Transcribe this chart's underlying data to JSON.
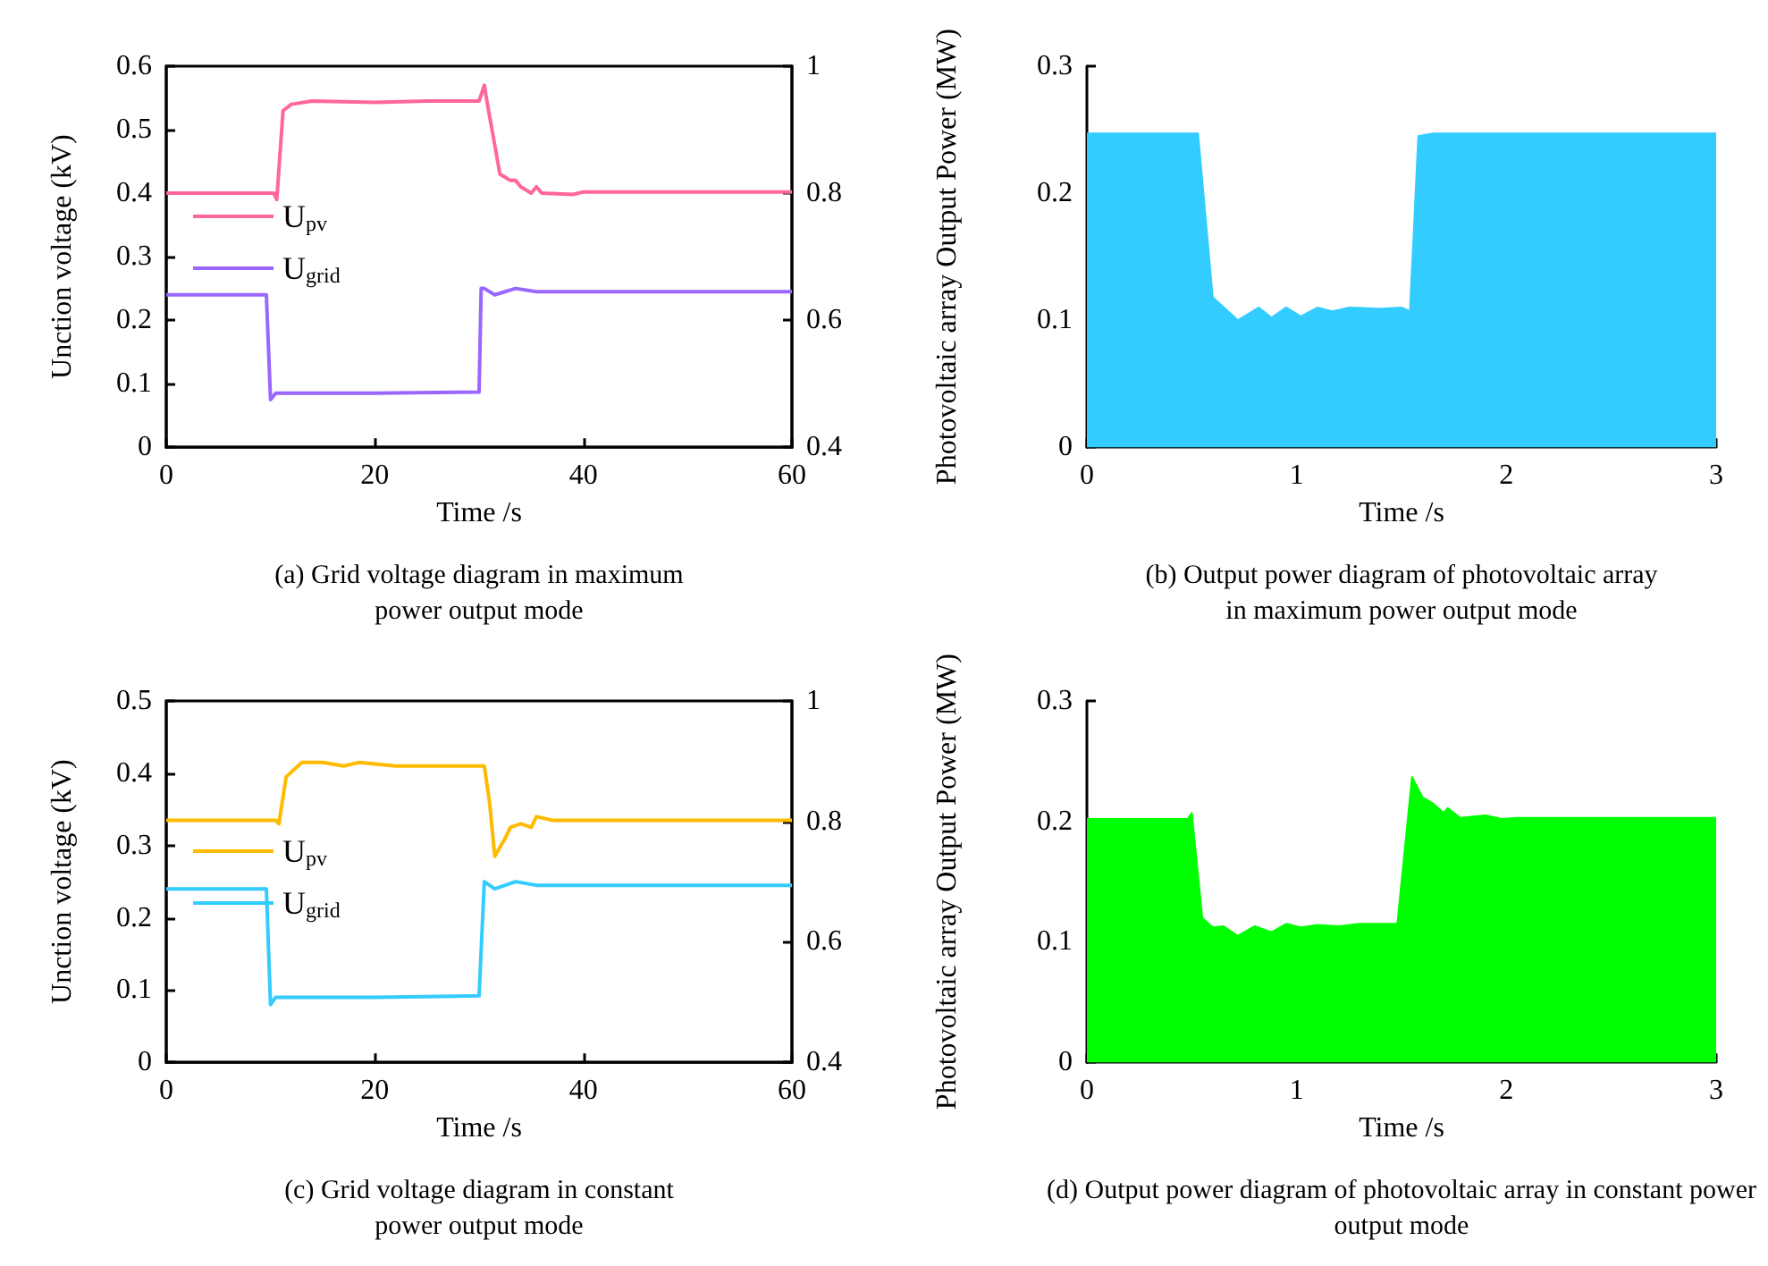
{
  "chart_data": [
    {
      "type": "line",
      "xlabel": "Time /s",
      "ylabel": "Unction voltage (kV)",
      "annotations": [
        "(a) Grid voltage diagram in maximum power output mode"
      ],
      "xlim": [
        0,
        60
      ],
      "xticks": [
        0,
        20,
        40,
        60
      ],
      "ylim": [
        0,
        0.6
      ],
      "yticks": [
        0,
        0.1,
        0.2,
        0.3,
        0.4,
        0.5,
        0.6
      ],
      "y2lim": [
        0.4,
        1.0
      ],
      "y2ticks": [
        0.4,
        0.6,
        0.8,
        1.0
      ],
      "grid": false,
      "legend": "left",
      "series": [
        {
          "name": "U$_{pv}$",
          "color": "#ff6699",
          "x": [
            0,
            10.3,
            10.6,
            11.2,
            12,
            14,
            20,
            25,
            30,
            30.5,
            30.8,
            32,
            33,
            33.5,
            34,
            35,
            35.5,
            36,
            39,
            40,
            60
          ],
          "values": [
            0.4,
            0.4,
            0.39,
            0.53,
            0.54,
            0.545,
            0.543,
            0.545,
            0.545,
            0.57,
            0.54,
            0.43,
            0.42,
            0.42,
            0.41,
            0.4,
            0.41,
            0.4,
            0.398,
            0.402,
            0.402
          ]
        },
        {
          "name": "U$_{grid}$",
          "color": "#9966ff",
          "x": [
            0,
            9.6,
            10,
            10.5,
            20,
            30,
            30.2,
            30.5,
            31.5,
            33.5,
            35.5,
            60
          ],
          "values": [
            0.24,
            0.24,
            0.075,
            0.085,
            0.085,
            0.087,
            0.25,
            0.25,
            0.24,
            0.25,
            0.245,
            0.245
          ]
        }
      ]
    },
    {
      "type": "area",
      "xlabel": "Time /s",
      "ylabel": "Photovoltaic array Output Power (MW)",
      "annotations": [
        "(b) Output power diagram of photovoltaic array in maximum power output mode"
      ],
      "xlim": [
        0,
        3
      ],
      "xticks": [
        0,
        1,
        2,
        3
      ],
      "ylim": [
        0,
        0.3
      ],
      "yticks": [
        0,
        0.1,
        0.2,
        0.3
      ],
      "grid": false,
      "series": [
        {
          "color": "#33ccff",
          "x": [
            0,
            0.53,
            0.6,
            0.72,
            0.82,
            0.88,
            0.95,
            1.02,
            1.1,
            1.17,
            1.25,
            1.4,
            1.5,
            1.54,
            1.58,
            1.65,
            3
          ],
          "values": [
            0.247,
            0.247,
            0.118,
            0.1,
            0.11,
            0.102,
            0.11,
            0.103,
            0.11,
            0.107,
            0.11,
            0.109,
            0.11,
            0.107,
            0.245,
            0.247,
            0.247
          ]
        }
      ]
    },
    {
      "type": "line",
      "xlabel": "Time /s",
      "ylabel": "Unction voltage (kV)",
      "annotations": [
        "(c) Grid voltage diagram in constant power output mode"
      ],
      "xlim": [
        0,
        60
      ],
      "xticks": [
        0,
        20,
        40,
        60
      ],
      "ylim": [
        0,
        0.5
      ],
      "yticks": [
        0,
        0.1,
        0.2,
        0.3,
        0.4,
        0.5
      ],
      "y2lim": [
        0.4,
        1.0
      ],
      "y2ticks": [
        0.4,
        0.6,
        0.8,
        1.0
      ],
      "grid": false,
      "legend": "left",
      "series": [
        {
          "name": "U$_{pv}$",
          "color": "#ffbb00",
          "x": [
            0,
            10.5,
            10.8,
            11.5,
            13,
            15,
            17,
            18.5,
            22,
            30,
            30.5,
            31,
            31.5,
            32.5,
            33,
            34,
            35,
            35.5,
            37,
            60
          ],
          "values": [
            0.335,
            0.335,
            0.33,
            0.395,
            0.415,
            0.415,
            0.41,
            0.415,
            0.41,
            0.41,
            0.41,
            0.36,
            0.285,
            0.31,
            0.325,
            0.33,
            0.325,
            0.34,
            0.335,
            0.335
          ]
        },
        {
          "name": "U$_{grid}$",
          "color": "#33ccff",
          "x": [
            0,
            9.6,
            10,
            10.5,
            20,
            30,
            30.5,
            31.5,
            33.5,
            35.5,
            60
          ],
          "values": [
            0.24,
            0.24,
            0.08,
            0.09,
            0.09,
            0.092,
            0.25,
            0.24,
            0.25,
            0.245,
            0.245
          ]
        }
      ]
    },
    {
      "type": "area",
      "xlabel": "Time /s",
      "ylabel": "Photovoltaic array Output Power (MW)",
      "annotations": [
        "(d) Output power diagram of photovoltaic array in constant power output mode"
      ],
      "xlim": [
        0,
        3
      ],
      "xticks": [
        0,
        1,
        2,
        3
      ],
      "ylim": [
        0,
        0.3
      ],
      "yticks": [
        0,
        0.1,
        0.2,
        0.3
      ],
      "grid": false,
      "series": [
        {
          "color": "#00ff00",
          "x": [
            0,
            0.48,
            0.5,
            0.55,
            0.6,
            0.65,
            0.72,
            0.8,
            0.88,
            0.95,
            1.02,
            1.1,
            1.2,
            1.3,
            1.48,
            1.55,
            1.6,
            1.65,
            1.7,
            1.72,
            1.78,
            1.9,
            1.98,
            2.05,
            3
          ],
          "values": [
            0.202,
            0.202,
            0.207,
            0.12,
            0.112,
            0.113,
            0.105,
            0.113,
            0.108,
            0.115,
            0.112,
            0.114,
            0.113,
            0.115,
            0.115,
            0.237,
            0.22,
            0.215,
            0.207,
            0.211,
            0.203,
            0.205,
            0.202,
            0.203,
            0.203
          ]
        }
      ]
    }
  ]
}
